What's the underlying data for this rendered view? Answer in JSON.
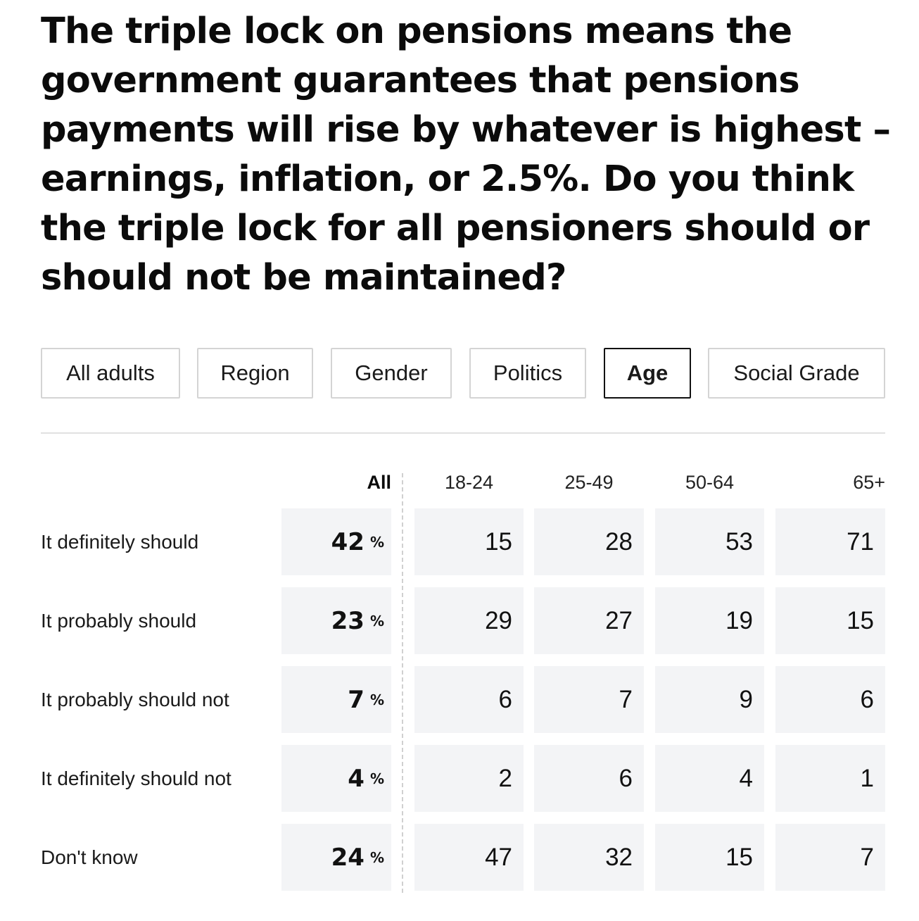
{
  "question": "The triple lock on pensions means the government guarantees that pensions payments will rise by whatever is highest – earnings, inflation, or 2.5%. Do you think the triple lock for all pensioners should or should not be maintained?",
  "tabs": [
    {
      "label": "All adults",
      "active": false
    },
    {
      "label": "Region",
      "active": false
    },
    {
      "label": "Gender",
      "active": false
    },
    {
      "label": "Politics",
      "active": false
    },
    {
      "label": "Age",
      "active": true
    },
    {
      "label": "Social Grade",
      "active": false
    }
  ],
  "chart_data": {
    "type": "table",
    "columns": [
      "All",
      "18-24",
      "25-49",
      "50-64",
      "65+"
    ],
    "all_unit": "%",
    "rows": [
      {
        "label": "It definitely should",
        "values": [
          42,
          15,
          28,
          53,
          71
        ]
      },
      {
        "label": "It probably should",
        "values": [
          23,
          29,
          27,
          19,
          15
        ]
      },
      {
        "label": "It probably should not",
        "values": [
          7,
          6,
          7,
          9,
          6
        ]
      },
      {
        "label": "It definitely should not",
        "values": [
          4,
          2,
          6,
          4,
          1
        ]
      },
      {
        "label": "Don't know",
        "values": [
          24,
          47,
          32,
          15,
          7
        ]
      }
    ]
  }
}
